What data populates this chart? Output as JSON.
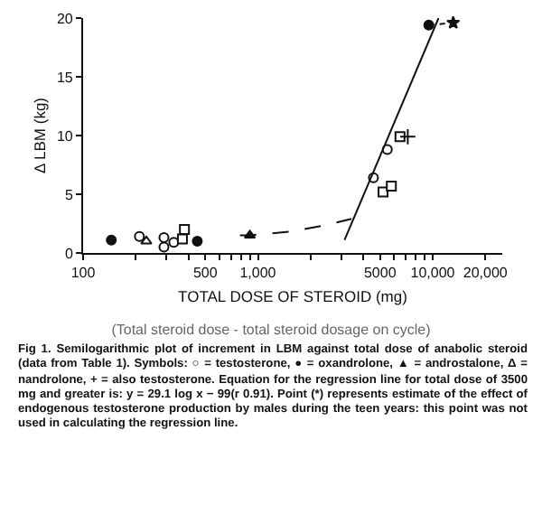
{
  "chart_data": {
    "type": "scatter",
    "xlabel": "TOTAL DOSE OF STEROID (mg)",
    "ylabel": "Δ LBM (kg)",
    "log": "x",
    "grid": false,
    "xlim": [
      100,
      25000
    ],
    "ylim": [
      0,
      20
    ],
    "xticks": [
      100,
      {
        "value": 200,
        "label": null
      },
      {
        "value": 300,
        "label": null
      },
      {
        "value": 400,
        "label": null
      },
      500,
      {
        "value": 600,
        "label": null
      },
      {
        "value": 700,
        "label": null
      },
      {
        "value": 800,
        "label": null
      },
      {
        "value": 900,
        "label": null
      },
      {
        "value": 1000,
        "label": "1,000"
      },
      {
        "value": 2000,
        "label": null
      },
      {
        "value": 3000,
        "label": null
      },
      {
        "value": 4000,
        "label": null
      },
      5000,
      {
        "value": 6000,
        "label": null
      },
      {
        "value": 7000,
        "label": null
      },
      {
        "value": 8000,
        "label": null
      },
      {
        "value": 9000,
        "label": null
      },
      {
        "value": 10000,
        "label": "10,000"
      },
      {
        "value": 20000,
        "label": "20,000"
      }
    ],
    "yticks": [
      0,
      5,
      10,
      15,
      20
    ],
    "series": [
      {
        "type": "scatter",
        "marker": "circle",
        "color": "#ffffff",
        "x": [
          210,
          290,
          290,
          330,
          4580,
          5500
        ],
        "values": [
          1.4,
          0.5,
          1.3,
          0.9,
          6.4,
          8.8
        ]
      },
      {
        "type": "scatter",
        "marker": "circle",
        "color": "#111111",
        "x": [
          145,
          450,
          9500
        ],
        "values": [
          1.1,
          1.0,
          19.4
        ]
      },
      {
        "type": "scatter",
        "marker": "square",
        "color": "#ffffff",
        "x": [
          370,
          380,
          5200,
          5800,
          6500
        ],
        "values": [
          1.2,
          2.0,
          5.2,
          5.7,
          9.9
        ]
      },
      {
        "type": "scatter",
        "marker": "triangle",
        "color": "#111111",
        "x": [
          900
        ],
        "values": [
          1.5
        ]
      },
      {
        "type": "scatter",
        "marker": "triangle",
        "color": "#ffffff",
        "x": [
          230
        ],
        "values": [
          1.0
        ]
      },
      {
        "type": "scatter",
        "marker": "cross",
        "color": "#111111",
        "x": [
          7200
        ],
        "values": [
          9.9
        ]
      },
      {
        "type": "scatter",
        "marker": "star",
        "color": "#111111",
        "x": [
          13100
        ],
        "values": [
          19.6
        ]
      },
      {
        "type": "line",
        "marker": "none",
        "line_style": "solid",
        "color": "#111111",
        "x": [
          3130,
          10800
        ],
        "values": [
          1.1,
          20
        ]
      },
      {
        "type": "line",
        "marker": "none",
        "line_style": "dashed",
        "color": "#111111",
        "x": [
          790,
          900,
          1500,
          2300,
          3430
        ],
        "values": [
          1.5,
          1.5,
          1.8,
          2.3,
          2.9
        ]
      },
      {
        "type": "line",
        "marker": "none",
        "line_style": "dotted",
        "color": "#111111",
        "x": [
          9500,
          13100
        ],
        "values": [
          19.4,
          19.6
        ]
      }
    ],
    "annotations": [
      "(Total steroid dose - total steroid dosage on cycle)",
      "Fig 1.   Semilogarithmic plot of increment in LBM against total dose of anabolic steroid (data from Table 1). Symbols: ○ = testosterone, ● = oxandrolone, ▲ = androstalone, Δ = nandrolone, + = also testosterone. Equation for the regression line for total dose of 3500 mg and greater is: y = 29.1 log x − 99(r 0.91). Point (*) represents estimate of the effect of endogenous testosterone production by males during the teen years: this point was not used in calculating the regression line."
    ]
  }
}
